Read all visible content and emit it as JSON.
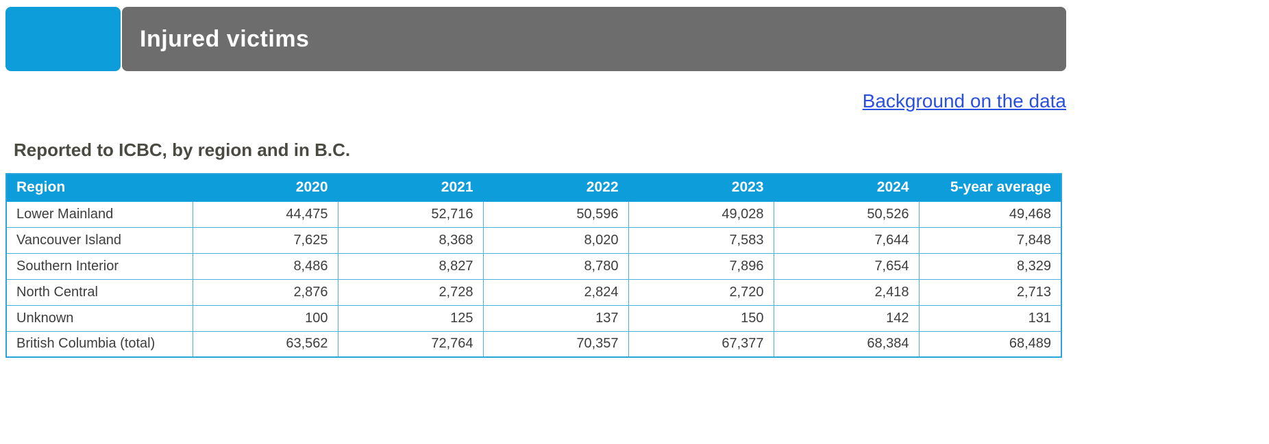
{
  "header": {
    "title": "Injured victims",
    "accent_color": "#0d9ddb",
    "bar_color": "#6d6d6d"
  },
  "link": {
    "label": "Background on the data",
    "color": "#2b50e0"
  },
  "subtitle": "Reported to ICBC, by region and in B.C.",
  "chart_data": {
    "type": "table",
    "title": "Injured victims",
    "subtitle": "Reported to ICBC, by region and in B.C.",
    "columns": [
      "Region",
      "2020",
      "2021",
      "2022",
      "2023",
      "2024",
      "5-year average"
    ],
    "rows": [
      [
        "Lower Mainland",
        "44,475",
        "52,716",
        "50,596",
        "49,028",
        "50,526",
        "49,468"
      ],
      [
        "Vancouver Island",
        "7,625",
        "8,368",
        "8,020",
        "7,583",
        "7,644",
        "7,848"
      ],
      [
        "Southern Interior",
        "8,486",
        "8,827",
        "8,780",
        "7,896",
        "7,654",
        "8,329"
      ],
      [
        "North Central",
        "2,876",
        "2,728",
        "2,824",
        "2,720",
        "2,418",
        "2,713"
      ],
      [
        "Unknown",
        "100",
        "125",
        "137",
        "150",
        "142",
        "131"
      ],
      [
        "British Columbia (total)",
        "63,562",
        "72,764",
        "70,357",
        "67,377",
        "68,384",
        "68,489"
      ]
    ],
    "header_bg_color": "#0d9ddb",
    "border_color": "#49b1e0"
  }
}
